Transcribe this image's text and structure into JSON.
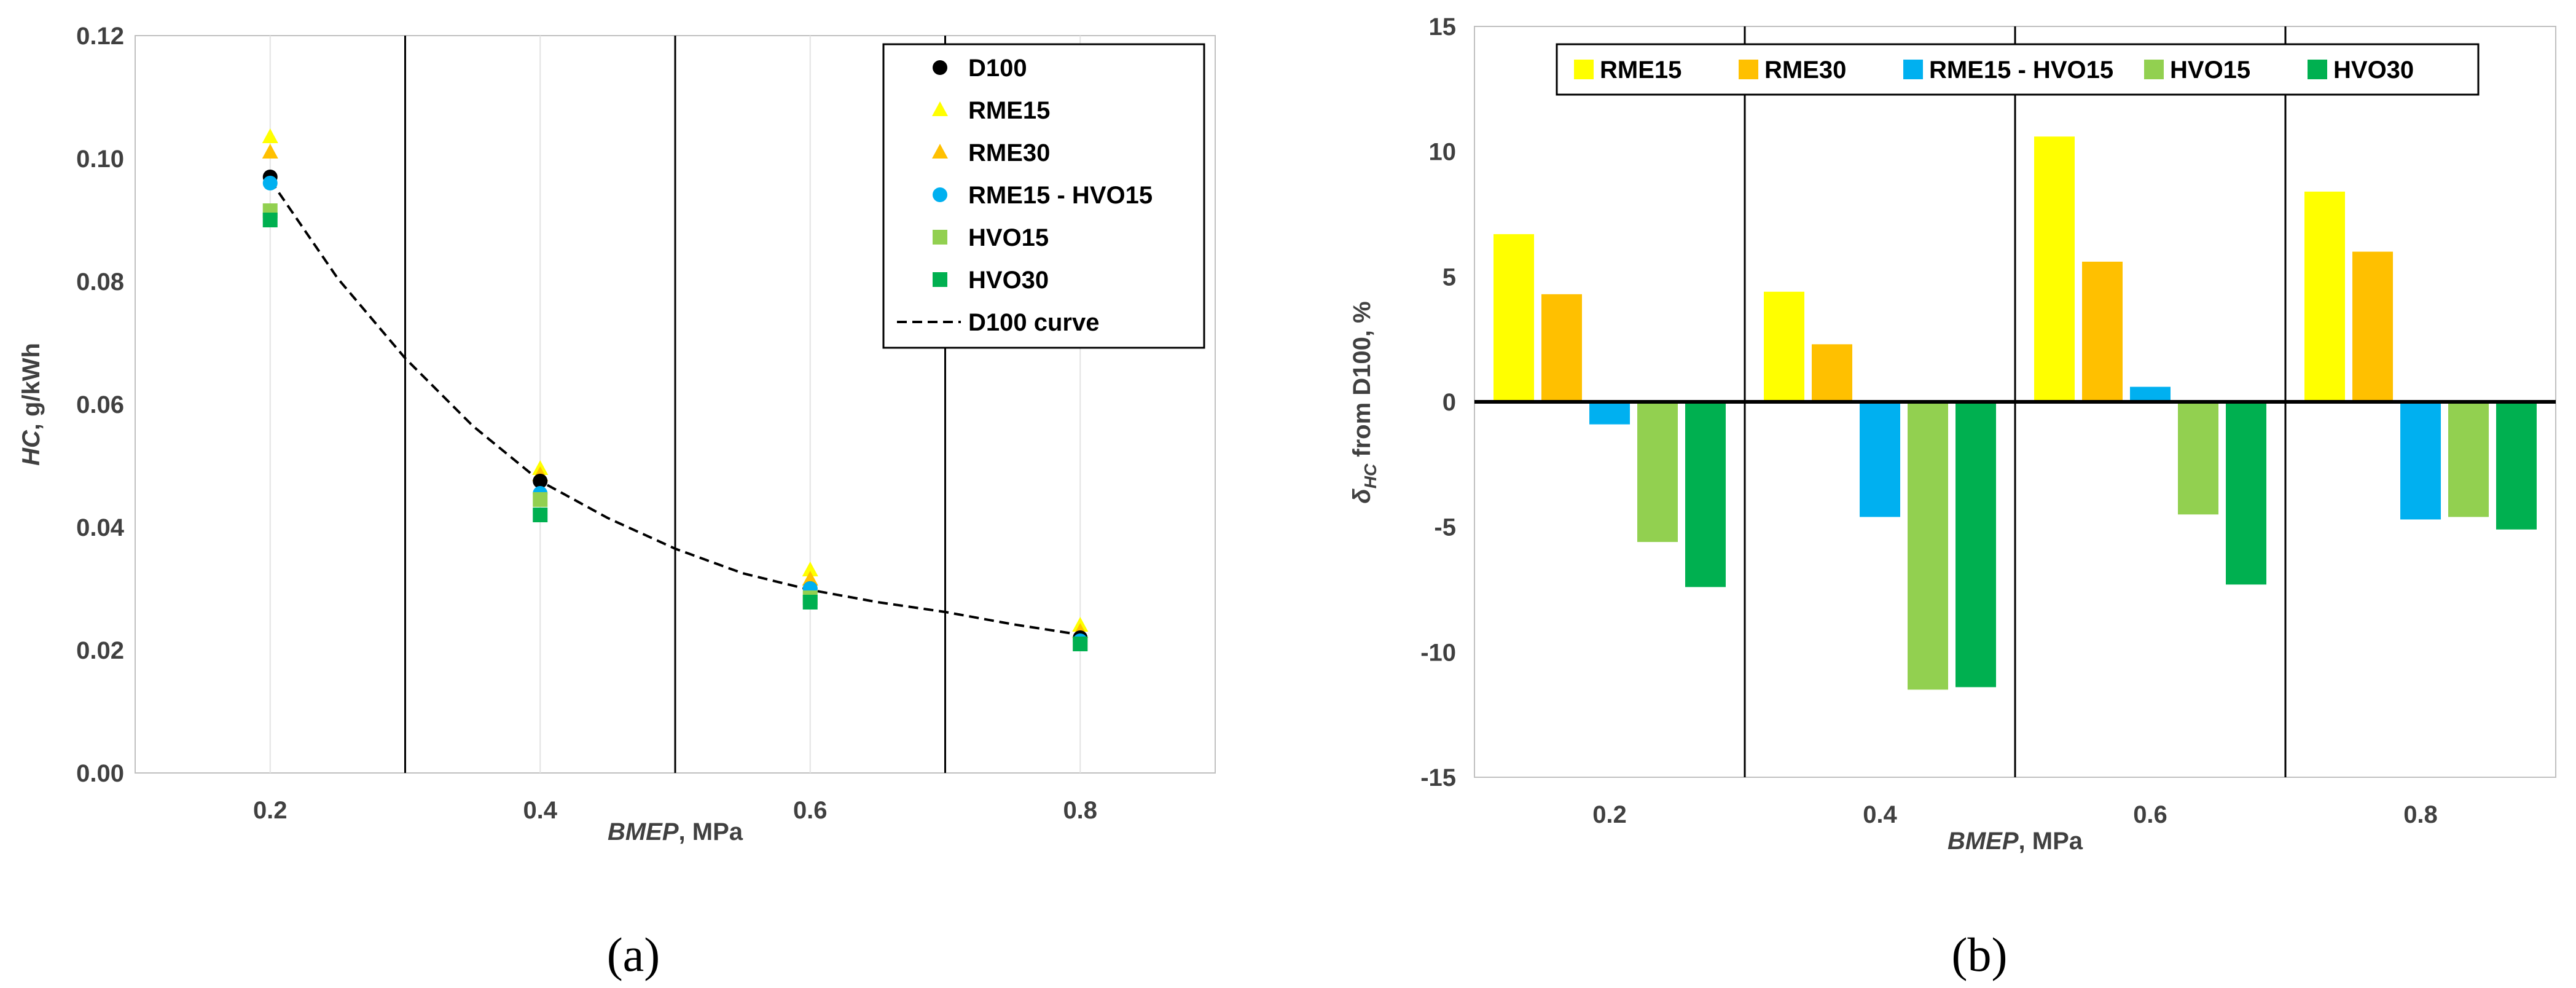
{
  "colors": {
    "D100": "#000000",
    "RME15": "#ffff00",
    "RME30": "#ffc000",
    "RME15 - HVO15": "#00b0f0",
    "HVO15": "#92d050",
    "HVO30": "#00b050"
  },
  "chart_data": [
    {
      "id": "a",
      "type": "scatter",
      "caption": "(a)",
      "ylabel_italic": "HC",
      "ylabel_rest": ", g/kWh",
      "xlabel_italic": "BMEP",
      "xlabel_rest": ", MPa",
      "ylim": [
        0,
        0.12
      ],
      "yticks": [
        "0.00",
        "0.02",
        "0.04",
        "0.06",
        "0.08",
        "0.10",
        "0.12"
      ],
      "xticks": [
        "0.2",
        "0.4",
        "0.6",
        "0.8"
      ],
      "xlim": [
        0.1,
        0.9
      ],
      "separators": [
        0.3,
        0.5,
        0.7
      ],
      "legend_position": "top-right",
      "series": [
        {
          "name": "D100",
          "marker": "circle",
          "x": [
            0.2,
            0.4,
            0.6,
            0.8
          ],
          "y": [
            0.097,
            0.0475,
            0.03,
            0.022
          ]
        },
        {
          "name": "RME15",
          "marker": "triangle",
          "x": [
            0.2,
            0.4,
            0.6,
            0.8
          ],
          "y": [
            0.1035,
            0.0495,
            0.033,
            0.024
          ]
        },
        {
          "name": "RME30",
          "marker": "triangle",
          "x": [
            0.2,
            0.4,
            0.6,
            0.8
          ],
          "y": [
            0.101,
            0.0485,
            0.0315,
            0.023
          ]
        },
        {
          "name": "RME15 - HVO15",
          "marker": "circle",
          "x": [
            0.2,
            0.4,
            0.6,
            0.8
          ],
          "y": [
            0.096,
            0.0455,
            0.03,
            0.0215
          ]
        },
        {
          "name": "HVO15",
          "marker": "square",
          "x": [
            0.2,
            0.4,
            0.6,
            0.8
          ],
          "y": [
            0.0915,
            0.0445,
            0.0285,
            0.021
          ]
        },
        {
          "name": "HVO30",
          "marker": "square",
          "x": [
            0.2,
            0.4,
            0.6,
            0.8
          ],
          "y": [
            0.09,
            0.042,
            0.0278,
            0.021
          ]
        }
      ],
      "curve": {
        "name": "D100 curve",
        "x": [
          0.2,
          0.25,
          0.3,
          0.35,
          0.4,
          0.45,
          0.5,
          0.55,
          0.6,
          0.65,
          0.7,
          0.75,
          0.8
        ],
        "y": [
          0.0965,
          0.0805,
          0.0675,
          0.0565,
          0.0475,
          0.0415,
          0.0365,
          0.0325,
          0.0298,
          0.0278,
          0.0262,
          0.0242,
          0.0225
        ]
      }
    },
    {
      "id": "b",
      "type": "bar",
      "caption": "(b)",
      "ylabel_symbol": "δ",
      "ylabel_sub": "HC",
      "ylabel_rest": " from D100, %",
      "xlabel_italic": "BMEP",
      "xlabel_rest": ", MPa",
      "ylim": [
        -15,
        15
      ],
      "yticks": [
        "-15",
        "-10",
        "-5",
        "0",
        "5",
        "10",
        "15"
      ],
      "categories": [
        "0.2",
        "0.4",
        "0.6",
        "0.8"
      ],
      "legend_position": "top",
      "series": [
        {
          "name": "RME15",
          "values": [
            6.7,
            4.4,
            10.6,
            8.4
          ]
        },
        {
          "name": "RME30",
          "values": [
            4.3,
            2.3,
            5.6,
            6.0
          ]
        },
        {
          "name": "RME15 - HVO15",
          "values": [
            -0.9,
            -4.6,
            0.6,
            -4.7
          ]
        },
        {
          "name": "HVO15",
          "values": [
            -5.6,
            -11.5,
            -4.5,
            -4.6
          ]
        },
        {
          "name": "HVO30",
          "values": [
            -7.4,
            -11.4,
            -7.3,
            -5.1
          ]
        }
      ]
    }
  ]
}
